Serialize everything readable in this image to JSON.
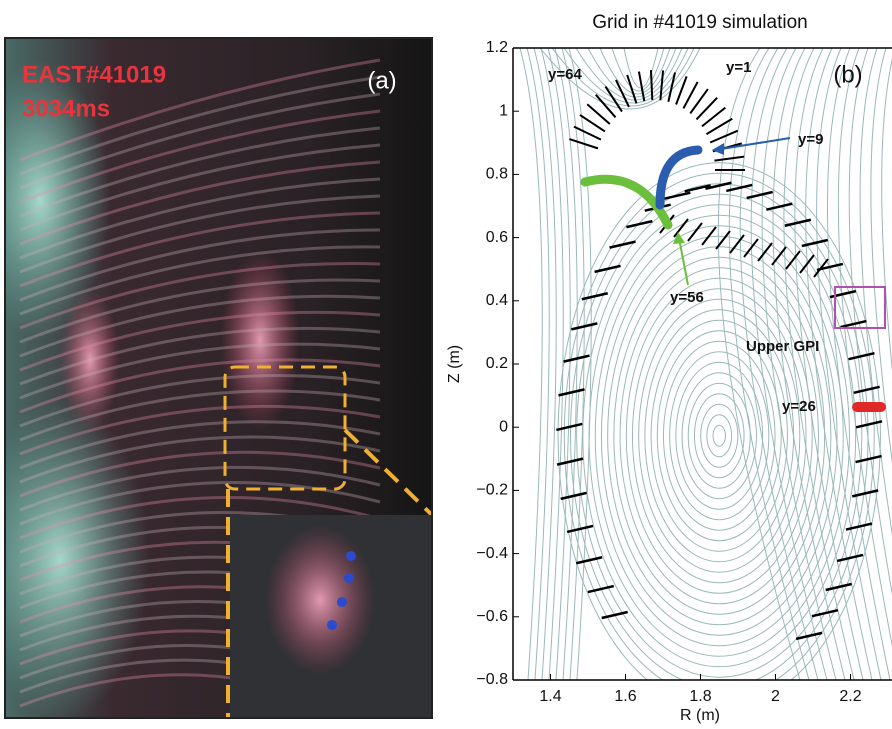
{
  "image_panel": {
    "shot": "EAST#41019",
    "time": "3034ms",
    "panel_label": "(a)"
  },
  "chart_data": {
    "type": "contour",
    "title": "Grid in #41019 simulation",
    "x_label": "R (m)",
    "y_label": "Z (m)",
    "panel_label": "(b)",
    "xlim": [
      1.3,
      2.3
    ],
    "xticks": [
      1.4,
      1.6,
      1.8,
      2,
      2.2
    ],
    "ylim": [
      -0.8,
      1.2
    ],
    "yticks": [
      {
        "value": -0.8,
        "label": "−0.8"
      },
      {
        "value": -0.6,
        "label": "−0.6"
      },
      {
        "value": -0.4,
        "label": "−0.4"
      },
      {
        "value": -0.2,
        "label": "−0.2"
      },
      0,
      0.2,
      0.4,
      0.6,
      0.8,
      1,
      1.2
    ],
    "annotations": [
      {
        "text": "y=64",
        "color": "#000000"
      },
      {
        "text": "y=1",
        "color": "#000000"
      },
      {
        "text": "y=9",
        "color": "#2a5cb0"
      },
      {
        "text": "y=56",
        "color": "#6cbf3c"
      },
      {
        "text": "Upper GPI",
        "color": "#b050b0"
      },
      {
        "text": "y=26",
        "color": "#e02828"
      }
    ]
  }
}
